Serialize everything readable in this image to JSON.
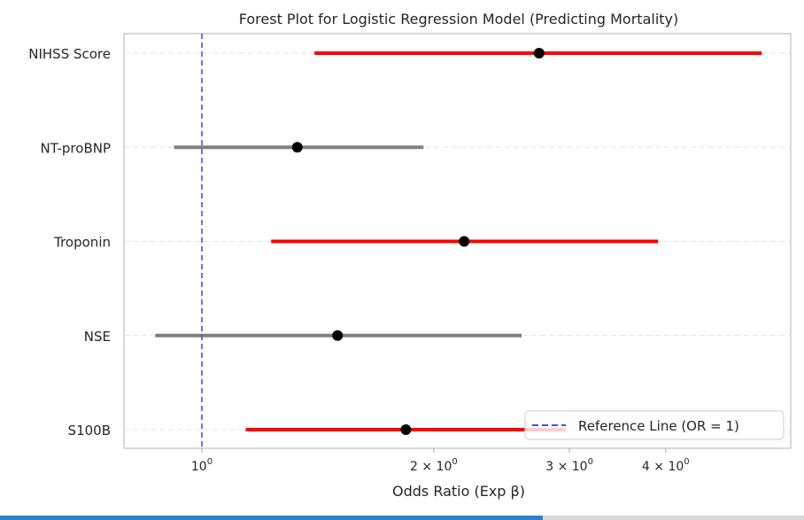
{
  "chart_data": {
    "type": "forest",
    "title": "Forest Plot for Logistic Regression Model (Predicting Mortality)",
    "xlabel": "Odds Ratio (Exp β)",
    "ylabel": "",
    "xscale": "log",
    "xlim": [
      0.79,
      5.7
    ],
    "xticks": [
      {
        "value": 1,
        "base": "10",
        "mult": "",
        "exp": "0"
      },
      {
        "value": 2,
        "base": "10",
        "mult": "2 × ",
        "exp": "0"
      },
      {
        "value": 3,
        "base": "10",
        "mult": "3 × ",
        "exp": "0"
      },
      {
        "value": 4,
        "base": "10",
        "mult": "4 × ",
        "exp": "0"
      }
    ],
    "grid": true,
    "series": [
      {
        "name": "NIHSS Score",
        "or": 2.74,
        "ci_low": 1.4,
        "ci_high": 5.33,
        "significant": true
      },
      {
        "name": "NT-proBNP",
        "or": 1.33,
        "ci_low": 0.92,
        "ci_high": 1.94,
        "significant": false
      },
      {
        "name": "Troponin",
        "or": 2.19,
        "ci_low": 1.23,
        "ci_high": 3.91,
        "significant": true
      },
      {
        "name": "NSE",
        "or": 1.5,
        "ci_low": 0.87,
        "ci_high": 2.6,
        "significant": false
      },
      {
        "name": "S100B",
        "or": 1.84,
        "ci_low": 1.14,
        "ci_high": 2.97,
        "significant": true
      }
    ],
    "reference_line": {
      "value": 1,
      "label": "Reference Line (OR = 1)"
    },
    "legend_position": "lower-right",
    "colors": {
      "significant": "#ff0000",
      "nonsignificant": "#808080",
      "point": "#000000",
      "reference": "#4a4aff"
    }
  }
}
